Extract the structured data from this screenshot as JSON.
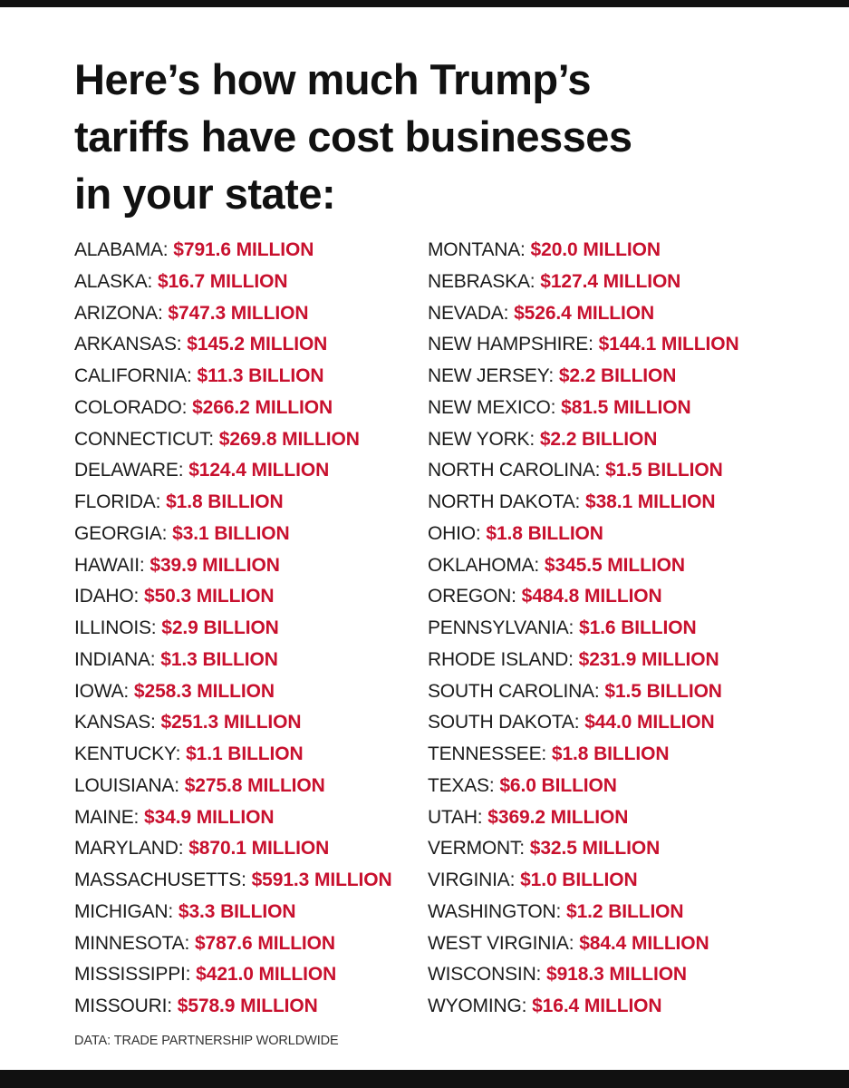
{
  "colors": {
    "accent": "#c8102e",
    "text": "#1c1c1c",
    "bars": "#111111",
    "background": "#ffffff"
  },
  "headline": {
    "line1": "Here’s how much Trump’s",
    "line2": "tariffs have cost businesses",
    "line3": "in your state:"
  },
  "states_left": [
    {
      "state": "ALABAMA:",
      "amount": "$791.6 MILLION"
    },
    {
      "state": "ALASKA:",
      "amount": "$16.7 MILLION"
    },
    {
      "state": "ARIZONA:",
      "amount": "$747.3 MILLION"
    },
    {
      "state": "ARKANSAS:",
      "amount": "$145.2 MILLION"
    },
    {
      "state": "CALIFORNIA:",
      "amount": "$11.3 BILLION"
    },
    {
      "state": "COLORADO:",
      "amount": "$266.2 MILLION"
    },
    {
      "state": "CONNECTICUT:",
      "amount": "$269.8 MILLION"
    },
    {
      "state": "DELAWARE:",
      "amount": "$124.4 MILLION"
    },
    {
      "state": "FLORIDA:",
      "amount": "$1.8 BILLION"
    },
    {
      "state": "GEORGIA:",
      "amount": "$3.1 BILLION"
    },
    {
      "state": "HAWAII:",
      "amount": "$39.9 MILLION"
    },
    {
      "state": "IDAHO:",
      "amount": "$50.3 MILLION"
    },
    {
      "state": "ILLINOIS:",
      "amount": "$2.9 BILLION"
    },
    {
      "state": "INDIANA:",
      "amount": "$1.3 BILLION"
    },
    {
      "state": "IOWA:",
      "amount": "$258.3 MILLION"
    },
    {
      "state": "KANSAS:",
      "amount": "$251.3 MILLION"
    },
    {
      "state": "KENTUCKY:",
      "amount": "$1.1 BILLION"
    },
    {
      "state": "LOUISIANA:",
      "amount": "$275.8 MILLION"
    },
    {
      "state": "MAINE:",
      "amount": "$34.9 MILLION"
    },
    {
      "state": "MARYLAND:",
      "amount": "$870.1 MILLION"
    },
    {
      "state": "MASSACHUSETTS:",
      "amount": "$591.3 MILLION"
    },
    {
      "state": "MICHIGAN:",
      "amount": "$3.3 BILLION"
    },
    {
      "state": "MINNESOTA:",
      "amount": "$787.6 MILLION"
    },
    {
      "state": "MISSISSIPPI:",
      "amount": "$421.0 MILLION"
    },
    {
      "state": "MISSOURI:",
      "amount": "$578.9 MILLION"
    }
  ],
  "states_right": [
    {
      "state": "MONTANA:",
      "amount": "$20.0 MILLION"
    },
    {
      "state": "NEBRASKA:",
      "amount": "$127.4 MILLION"
    },
    {
      "state": "NEVADA:",
      "amount": "$526.4 MILLION"
    },
    {
      "state": "NEW HAMPSHIRE:",
      "amount": "$144.1 MILLION"
    },
    {
      "state": "NEW JERSEY:",
      "amount": "$2.2 BILLION"
    },
    {
      "state": "NEW MEXICO:",
      "amount": "$81.5 MILLION"
    },
    {
      "state": "NEW YORK:",
      "amount": "$2.2 BILLION"
    },
    {
      "state": "NORTH CAROLINA:",
      "amount": "$1.5 BILLION"
    },
    {
      "state": "NORTH DAKOTA:",
      "amount": "$38.1 MILLION"
    },
    {
      "state": "OHIO:",
      "amount": "$1.8 BILLION"
    },
    {
      "state": "OKLAHOMA:",
      "amount": "$345.5 MILLION"
    },
    {
      "state": "OREGON:",
      "amount": "$484.8 MILLION"
    },
    {
      "state": "PENNSYLVANIA:",
      "amount": "$1.6 BILLION"
    },
    {
      "state": "RHODE ISLAND:",
      "amount": "$231.9 MILLION"
    },
    {
      "state": "SOUTH CAROLINA:",
      "amount": "$1.5 BILLION"
    },
    {
      "state": "SOUTH DAKOTA:",
      "amount": "$44.0 MILLION"
    },
    {
      "state": "TENNESSEE:",
      "amount": "$1.8 BILLION"
    },
    {
      "state": "TEXAS:",
      "amount": "$6.0 BILLION"
    },
    {
      "state": "UTAH:",
      "amount": "$369.2 MILLION"
    },
    {
      "state": "VERMONT:",
      "amount": "$32.5 MILLION"
    },
    {
      "state": "VIRGINIA:",
      "amount": "$1.0 BILLION"
    },
    {
      "state": "WASHINGTON:",
      "amount": "$1.2 BILLION"
    },
    {
      "state": "WEST VIRGINIA:",
      "amount": "$84.4 MILLION"
    },
    {
      "state": "WISCONSIN:",
      "amount": "$918.3 MILLION"
    },
    {
      "state": "WYOMING:",
      "amount": "$16.4 MILLION"
    }
  ],
  "source": "DATA: TRADE PARTNERSHIP WORLDWIDE"
}
